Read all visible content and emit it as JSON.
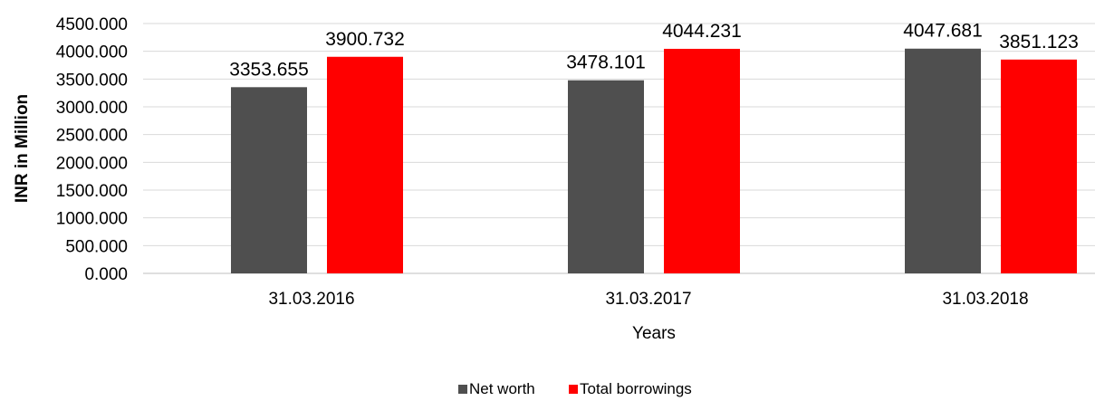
{
  "chart_data": {
    "type": "bar",
    "categories": [
      "31.03.2016",
      "31.03.2017",
      "31.03.2018"
    ],
    "series": [
      {
        "name": "Net worth",
        "values": [
          3353.655,
          3478.101,
          4047.681
        ],
        "color": "#4f4f4f"
      },
      {
        "name": "Total borrowings",
        "values": [
          3900.732,
          4044.231,
          3851.123
        ],
        "color": "#ff0000"
      }
    ],
    "data_labels": [
      [
        "3353.655",
        "3478.101",
        "4047.681"
      ],
      [
        "3900.732",
        "4044.231",
        "3851.123"
      ]
    ],
    "xlabel": "Years",
    "ylabel": "INR in Million",
    "ylim": [
      0,
      4500
    ],
    "yticks": [
      0,
      500,
      1000,
      1500,
      2000,
      2500,
      3000,
      3500,
      4000,
      4500
    ],
    "ytick_labels": [
      "0.000",
      "500.000",
      "1000.000",
      "1500.000",
      "2000.000",
      "2500.000",
      "3000.000",
      "3500.000",
      "4000.000",
      "4500.000"
    ],
    "grid": true,
    "gridline_color": "#d9d9d9",
    "legend_position": "bottom-center"
  }
}
